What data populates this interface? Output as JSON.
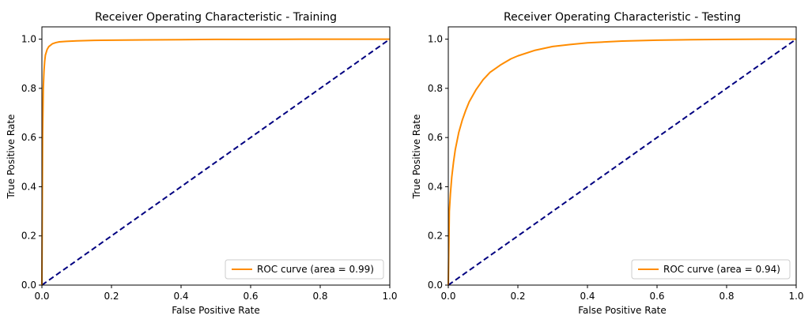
{
  "chart_data": [
    {
      "type": "line",
      "title": "Receiver Operating Characteristic - Training",
      "xlabel": "False Positive Rate",
      "ylabel": "True Positive Rate",
      "xlim": [
        0.0,
        1.0
      ],
      "ylim": [
        0.0,
        1.05
      ],
      "xticks": [
        "0.0",
        "0.2",
        "0.4",
        "0.6",
        "0.8",
        "1.0"
      ],
      "yticks": [
        "0.0",
        "0.2",
        "0.4",
        "0.6",
        "0.8",
        "1.0"
      ],
      "legend_position": "lower-right",
      "grid": false,
      "series": [
        {
          "name": "ROC curve (area = 0.99)",
          "color": "#ff8c00",
          "style": "solid",
          "x": [
            0.0,
            0.002,
            0.004,
            0.006,
            0.008,
            0.01,
            0.015,
            0.02,
            0.03,
            0.04,
            0.05,
            0.07,
            0.1,
            0.15,
            0.2,
            0.3,
            0.4,
            0.5,
            0.6,
            0.7,
            0.8,
            0.9,
            1.0
          ],
          "y": [
            0.0,
            0.6,
            0.8,
            0.87,
            0.91,
            0.935,
            0.958,
            0.97,
            0.981,
            0.986,
            0.989,
            0.991,
            0.993,
            0.995,
            0.996,
            0.997,
            0.998,
            0.999,
            0.999,
            0.9995,
            1.0,
            1.0,
            1.0
          ]
        },
        {
          "name": "",
          "color": "#000080",
          "style": "dashed",
          "x": [
            0.0,
            1.0
          ],
          "y": [
            0.0,
            1.0
          ]
        }
      ]
    },
    {
      "type": "line",
      "title": "Receiver Operating Characteristic - Testing",
      "xlabel": "False Positive Rate",
      "ylabel": "True Positive Rate",
      "xlim": [
        0.0,
        1.0
      ],
      "ylim": [
        0.0,
        1.05
      ],
      "xticks": [
        "0.0",
        "0.2",
        "0.4",
        "0.6",
        "0.8",
        "1.0"
      ],
      "yticks": [
        "0.0",
        "0.2",
        "0.4",
        "0.6",
        "0.8",
        "1.0"
      ],
      "legend_position": "lower-right",
      "grid": false,
      "series": [
        {
          "name": "ROC curve (area = 0.94)",
          "color": "#ff8c00",
          "style": "solid",
          "x": [
            0.0,
            0.003,
            0.006,
            0.01,
            0.015,
            0.02,
            0.03,
            0.04,
            0.05,
            0.06,
            0.08,
            0.1,
            0.12,
            0.15,
            0.18,
            0.2,
            0.25,
            0.3,
            0.35,
            0.4,
            0.5,
            0.6,
            0.7,
            0.8,
            0.9,
            1.0
          ],
          "y": [
            0.0,
            0.3,
            0.37,
            0.44,
            0.5,
            0.55,
            0.62,
            0.67,
            0.71,
            0.745,
            0.795,
            0.835,
            0.865,
            0.895,
            0.92,
            0.932,
            0.955,
            0.97,
            0.978,
            0.985,
            0.992,
            0.996,
            0.998,
            0.999,
            1.0,
            1.0
          ]
        },
        {
          "name": "",
          "color": "#000080",
          "style": "dashed",
          "x": [
            0.0,
            1.0
          ],
          "y": [
            0.0,
            1.0
          ]
        }
      ]
    }
  ]
}
